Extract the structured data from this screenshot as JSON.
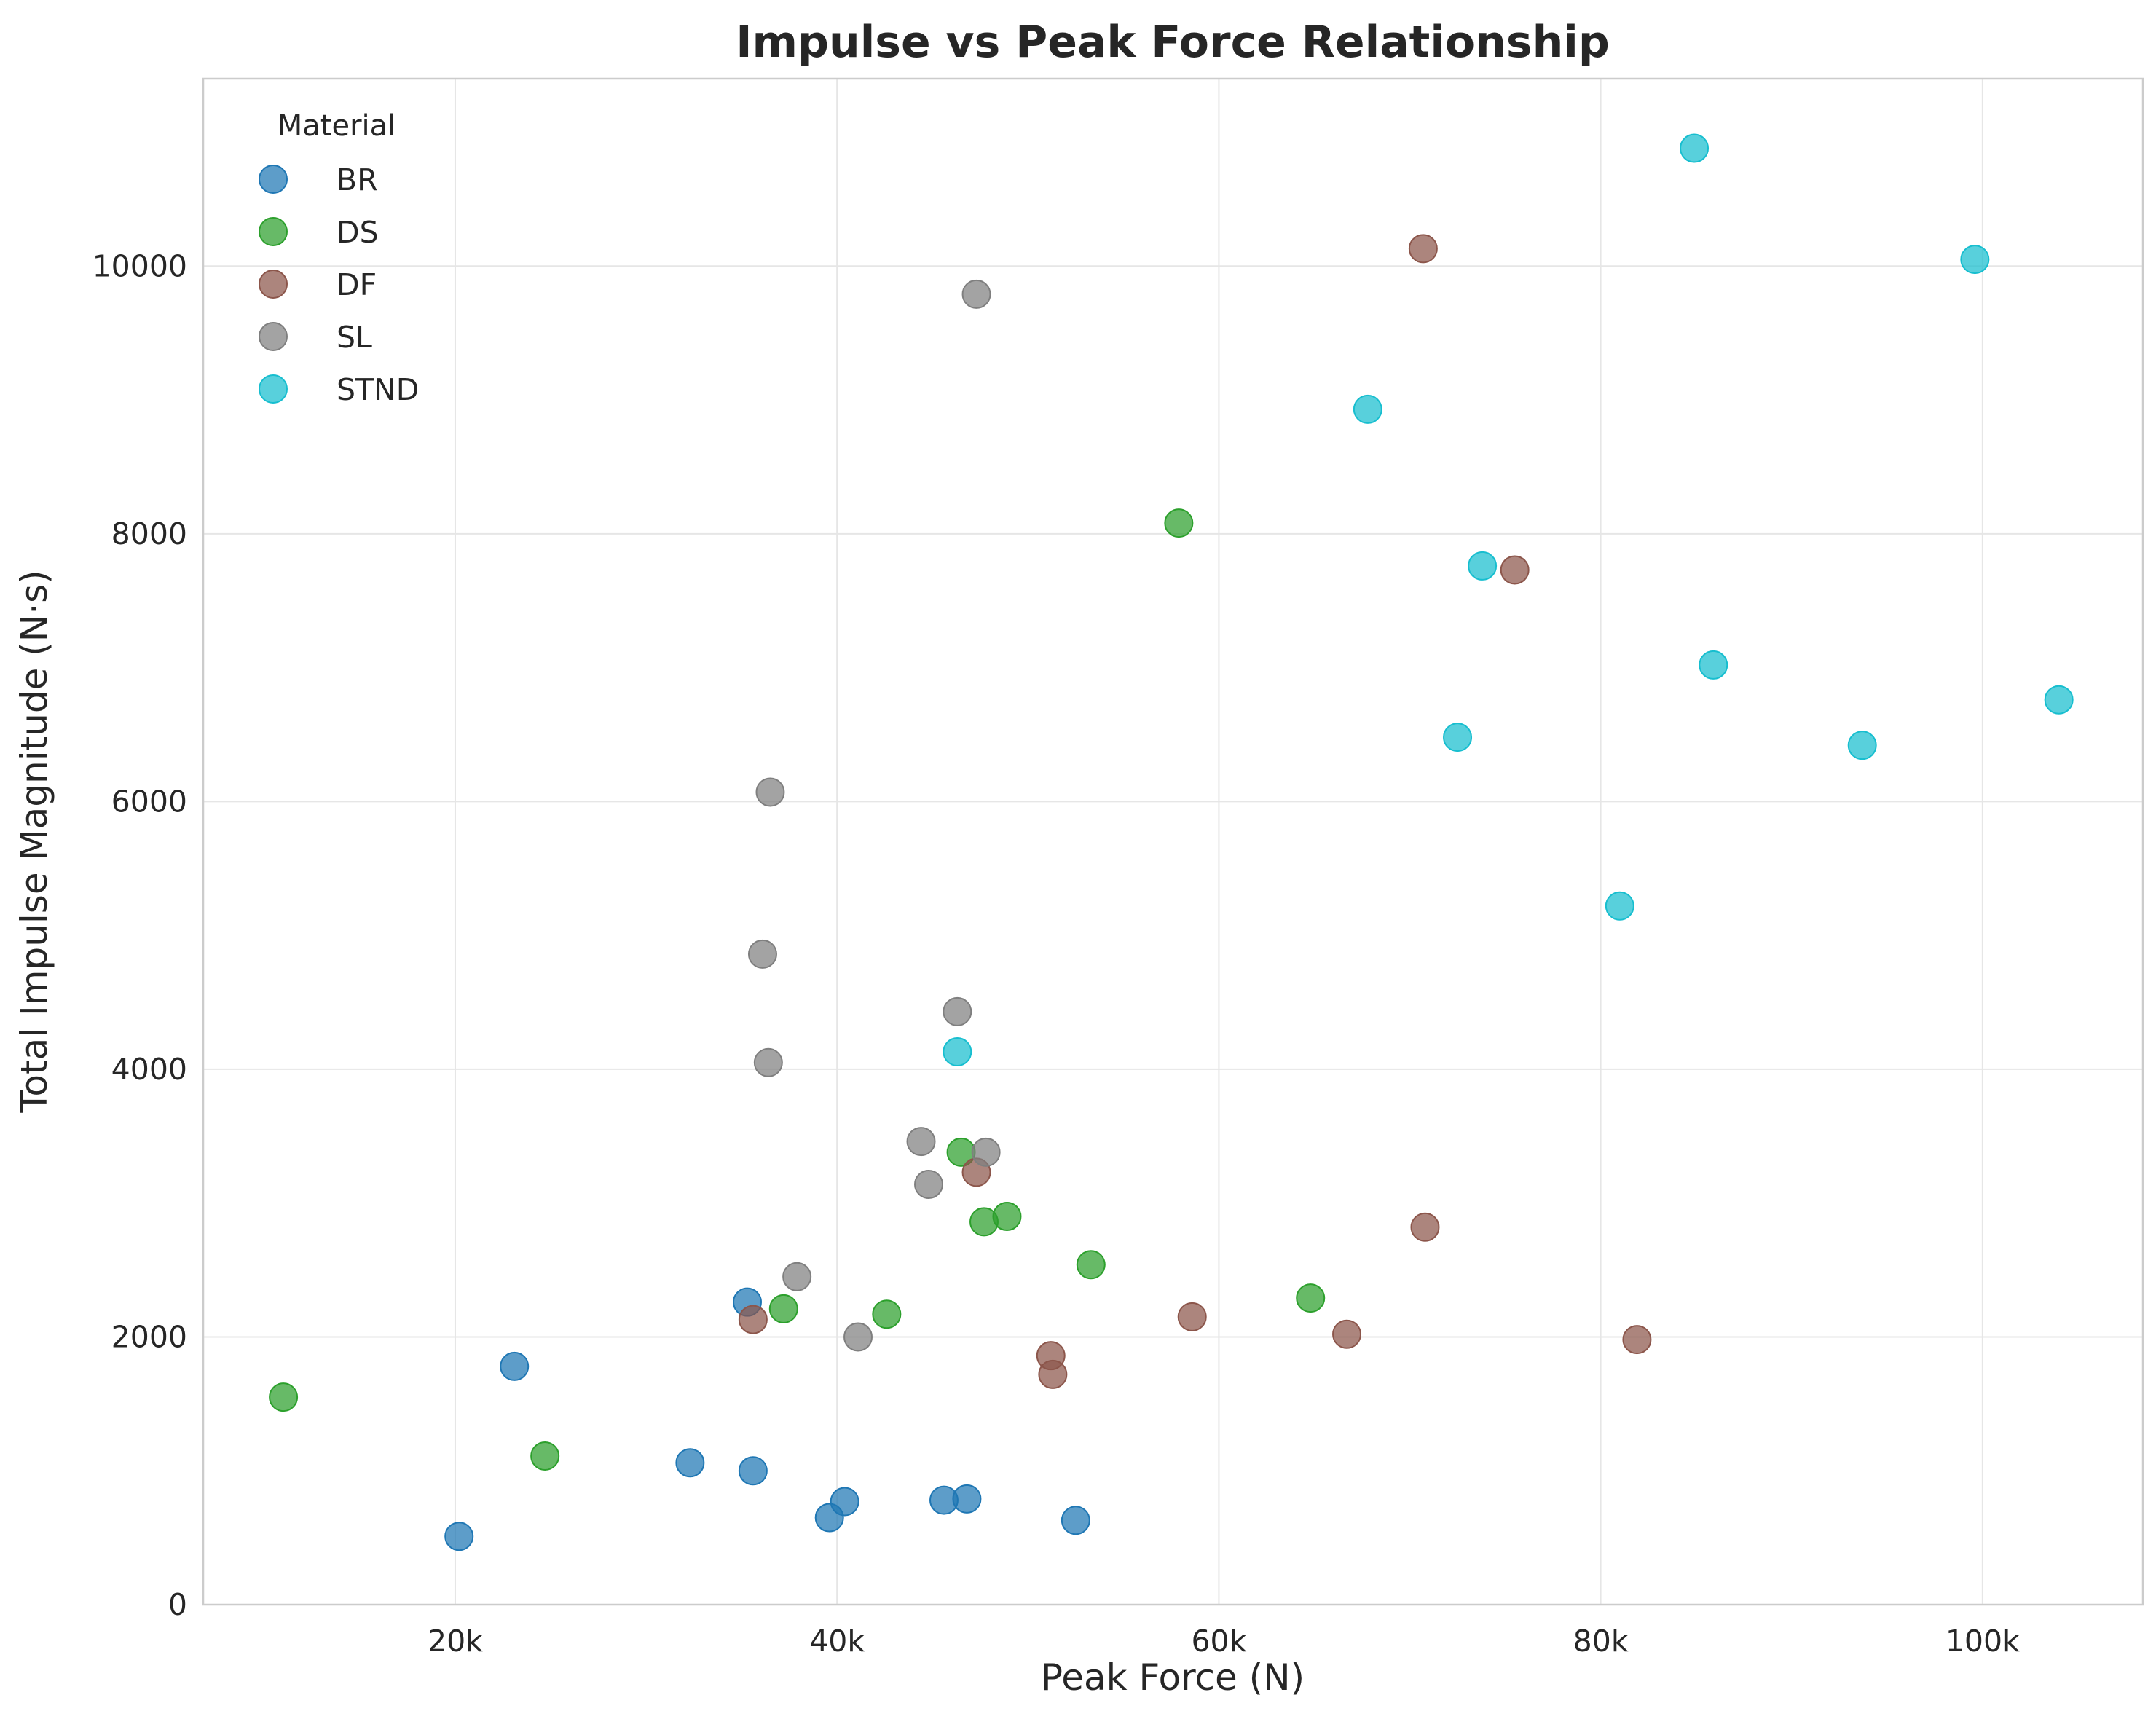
{
  "chart_data": {
    "type": "scatter",
    "title": "Impulse vs Peak Force Relationship",
    "xlabel": "Peak Force (N)",
    "ylabel": "Total Impulse Magnitude (N·s)",
    "xlim": [
      6800,
      108400
    ],
    "ylim": [
      0,
      11400
    ],
    "x_ticks": [
      {
        "value": 20000,
        "label": "20k"
      },
      {
        "value": 40000,
        "label": "40k"
      },
      {
        "value": 60000,
        "label": "60k"
      },
      {
        "value": 80000,
        "label": "80k"
      },
      {
        "value": 100000,
        "label": "100k"
      }
    ],
    "y_ticks": [
      {
        "value": 0,
        "label": "0"
      },
      {
        "value": 2000,
        "label": "2000"
      },
      {
        "value": 4000,
        "label": "4000"
      },
      {
        "value": 6000,
        "label": "6000"
      },
      {
        "value": 8000,
        "label": "8000"
      },
      {
        "value": 10000,
        "label": "10000"
      }
    ],
    "grid": true,
    "legend": {
      "title": "Material",
      "placement": "top-left"
    },
    "series": [
      {
        "name": "BR",
        "color": "#1f77b4",
        "points": [
          {
            "x": 20200,
            "y": 510
          },
          {
            "x": 23100,
            "y": 1780
          },
          {
            "x": 32300,
            "y": 1060
          },
          {
            "x": 35300,
            "y": 2260
          },
          {
            "x": 35600,
            "y": 1000
          },
          {
            "x": 39600,
            "y": 650
          },
          {
            "x": 40400,
            "y": 770
          },
          {
            "x": 45600,
            "y": 780
          },
          {
            "x": 46800,
            "y": 790
          },
          {
            "x": 52500,
            "y": 630
          }
        ]
      },
      {
        "name": "DS",
        "color": "#2ca02c",
        "points": [
          {
            "x": 11000,
            "y": 1550
          },
          {
            "x": 24700,
            "y": 1110
          },
          {
            "x": 37200,
            "y": 2210
          },
          {
            "x": 42600,
            "y": 2170
          },
          {
            "x": 46500,
            "y": 3380
          },
          {
            "x": 47700,
            "y": 2860
          },
          {
            "x": 48900,
            "y": 2900
          },
          {
            "x": 53300,
            "y": 2540
          },
          {
            "x": 57900,
            "y": 8080
          },
          {
            "x": 64800,
            "y": 2290
          }
        ]
      },
      {
        "name": "DF",
        "color": "#8c564b",
        "points": [
          {
            "x": 35600,
            "y": 2130
          },
          {
            "x": 47300,
            "y": 3230
          },
          {
            "x": 51200,
            "y": 1860
          },
          {
            "x": 51300,
            "y": 1720
          },
          {
            "x": 58600,
            "y": 2150
          },
          {
            "x": 66700,
            "y": 2020
          },
          {
            "x": 70800,
            "y": 2820
          },
          {
            "x": 70700,
            "y": 10130
          },
          {
            "x": 75500,
            "y": 7730
          },
          {
            "x": 81900,
            "y": 1980
          }
        ]
      },
      {
        "name": "SL",
        "color": "#7f7f7f",
        "points": [
          {
            "x": 36100,
            "y": 4860
          },
          {
            "x": 36400,
            "y": 4050
          },
          {
            "x": 36500,
            "y": 6070
          },
          {
            "x": 37900,
            "y": 2450
          },
          {
            "x": 41100,
            "y": 2000
          },
          {
            "x": 44400,
            "y": 3460
          },
          {
            "x": 44800,
            "y": 3140
          },
          {
            "x": 46300,
            "y": 4430
          },
          {
            "x": 47300,
            "y": 9790
          },
          {
            "x": 47800,
            "y": 3380
          }
        ]
      },
      {
        "name": "STND",
        "color": "#17becf",
        "points": [
          {
            "x": 46300,
            "y": 4130
          },
          {
            "x": 67800,
            "y": 8930
          },
          {
            "x": 72500,
            "y": 6480
          },
          {
            "x": 73800,
            "y": 7760
          },
          {
            "x": 81000,
            "y": 5220
          },
          {
            "x": 84900,
            "y": 10880
          },
          {
            "x": 85900,
            "y": 7020
          },
          {
            "x": 93700,
            "y": 6420
          },
          {
            "x": 99600,
            "y": 10050
          },
          {
            "x": 104000,
            "y": 6760
          }
        ]
      }
    ]
  }
}
